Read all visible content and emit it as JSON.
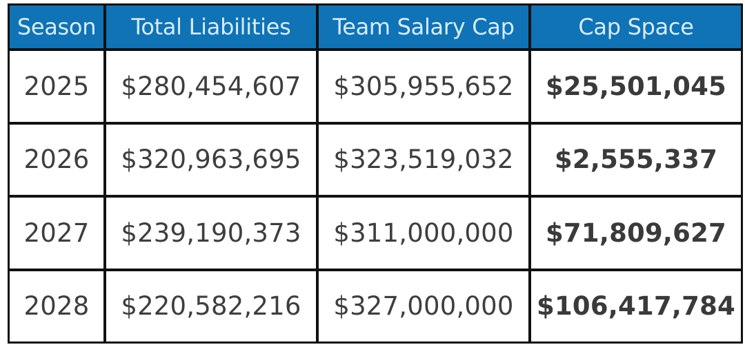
{
  "table": {
    "headers": [
      "Season",
      "Total Liabilities",
      "Team Salary Cap",
      "Cap Space"
    ],
    "rows": [
      {
        "season": "2025",
        "liabilities": "$280,454,607",
        "cap": "$305,955,652",
        "space": "$25,501,045"
      },
      {
        "season": "2026",
        "liabilities": "$320,963,695",
        "cap": "$323,519,032",
        "space": "$2,555,337"
      },
      {
        "season": "2027",
        "liabilities": "$239,190,373",
        "cap": "$311,000,000",
        "space": "$71,809,627"
      },
      {
        "season": "2028",
        "liabilities": "$220,582,216",
        "cap": "$327,000,000",
        "space": "$106,417,784"
      }
    ]
  },
  "colors": {
    "header_bg": "#0f73b6",
    "header_text": "#d9ecf8",
    "border": "#111111",
    "cell_bg": "#ffffff",
    "cell_text": "#3e3e3e"
  }
}
